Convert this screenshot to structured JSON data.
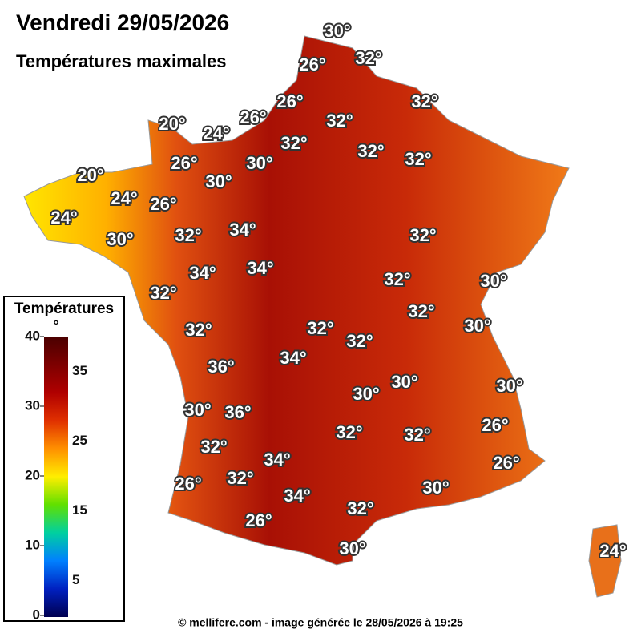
{
  "header": {
    "title": "Vendredi 29/05/2026",
    "subtitle": "Températures maximales"
  },
  "map": {
    "labels": [
      "30°",
      "26°",
      "32°",
      "26°",
      "32°",
      "20°",
      "24°",
      "26°",
      "32°",
      "32°",
      "32°",
      "32°",
      "20°",
      "26°",
      "30°",
      "30°",
      "24°",
      "26°",
      "24°",
      "32°",
      "34°",
      "32°",
      "30°",
      "34°",
      "34°",
      "32°",
      "30°",
      "32°",
      "32°",
      "32°",
      "32°",
      "30°",
      "32°",
      "34°",
      "36°",
      "30°",
      "30°",
      "30°",
      "30°",
      "36°",
      "26°",
      "32°",
      "32°",
      "32°",
      "34°",
      "26°",
      "26°",
      "32°",
      "30°",
      "34°",
      "32°",
      "26°",
      "30°",
      "24°"
    ]
  },
  "legend": {
    "title": "Températures",
    "unit": "°",
    "ticks_major": [
      40,
      30,
      20,
      10,
      0
    ],
    "ticks_minor": [
      35,
      25,
      15,
      5
    ]
  },
  "footer": "© mellifere.com - image générée le 28/05/2026 à 19:25"
}
